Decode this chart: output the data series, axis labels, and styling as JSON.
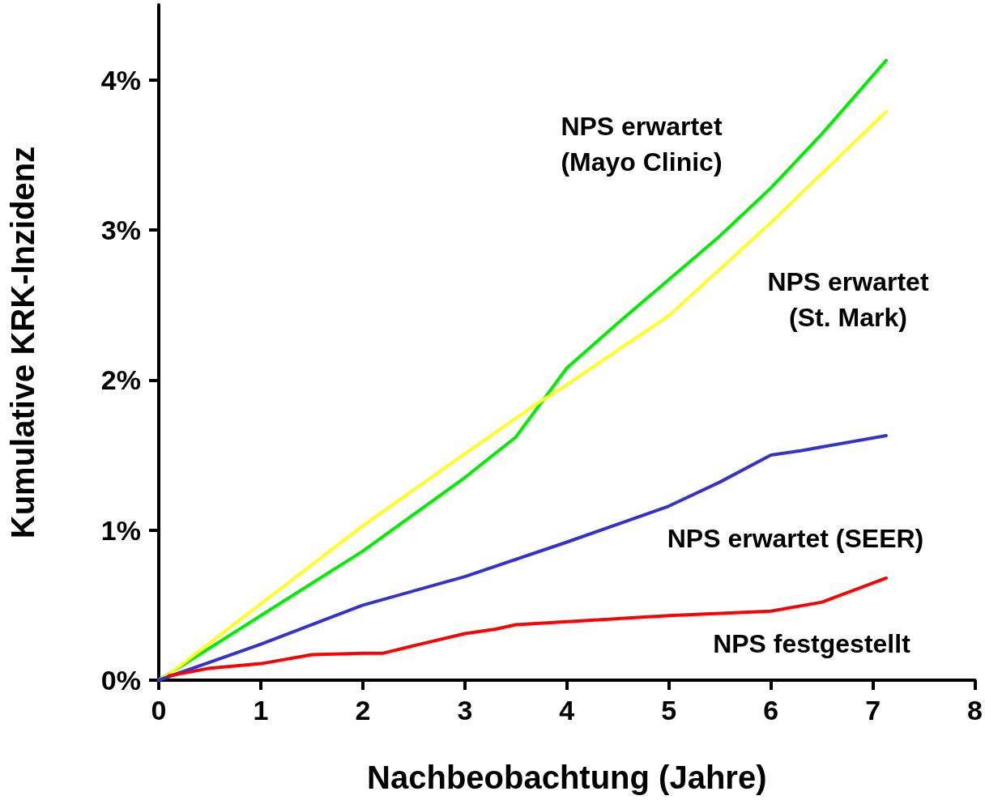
{
  "chart_data": {
    "type": "line",
    "xlabel": "Nachbeobachtung (Jahre)",
    "ylabel": "Kumulative KRK-Inzidenz",
    "xlim": [
      0,
      8
    ],
    "xticks": [
      0,
      1,
      2,
      3,
      4,
      5,
      6,
      7,
      8
    ],
    "ylim": [
      0,
      4.5
    ],
    "yticks": [
      {
        "value": 0,
        "label": "0%"
      },
      {
        "value": 1,
        "label": "1%"
      },
      {
        "value": 2,
        "label": "2%"
      },
      {
        "value": 3,
        "label": "3%"
      },
      {
        "value": 4,
        "label": "4%"
      }
    ],
    "grid": false,
    "marker": "none",
    "line_style": "solid",
    "series": [
      {
        "name": "NPS erwartet\n(Mayo Clinic)",
        "color": "#00ee00",
        "x": [
          0,
          1,
          2,
          3,
          3.5,
          4,
          4.5,
          5,
          5.5,
          6,
          6.5,
          7.13
        ],
        "values": [
          0,
          0.43,
          0.86,
          1.35,
          1.62,
          2.08,
          2.38,
          2.67,
          2.96,
          3.28,
          3.64,
          4.13
        ]
      },
      {
        "name": "NPS erwartet\n(St. Mark)",
        "color": "#ffff22",
        "x": [
          0,
          0.1,
          1,
          2,
          3,
          3.7,
          4,
          5,
          6,
          7.13
        ],
        "values": [
          0,
          0.04,
          0.51,
          1.03,
          1.51,
          1.84,
          1.97,
          2.43,
          3.05,
          3.79
        ]
      },
      {
        "name": "NPS erwartet (SEER)",
        "color": "#3333cc",
        "x": [
          0,
          1,
          2,
          3,
          4,
          5,
          5.5,
          6,
          6.3,
          7.13
        ],
        "values": [
          0,
          0.24,
          0.5,
          0.69,
          0.92,
          1.16,
          1.32,
          1.5,
          1.53,
          1.63
        ]
      },
      {
        "name": "NPS festgestellt",
        "color": "#ff0000",
        "x": [
          0.1,
          0.5,
          1,
          1.5,
          2,
          2.2,
          2.5,
          3,
          3.3,
          3.5,
          4,
          5,
          6,
          6.5,
          7.13
        ],
        "values": [
          0.03,
          0.08,
          0.11,
          0.17,
          0.18,
          0.18,
          0.23,
          0.31,
          0.34,
          0.37,
          0.39,
          0.43,
          0.46,
          0.52,
          0.68
        ]
      }
    ]
  }
}
